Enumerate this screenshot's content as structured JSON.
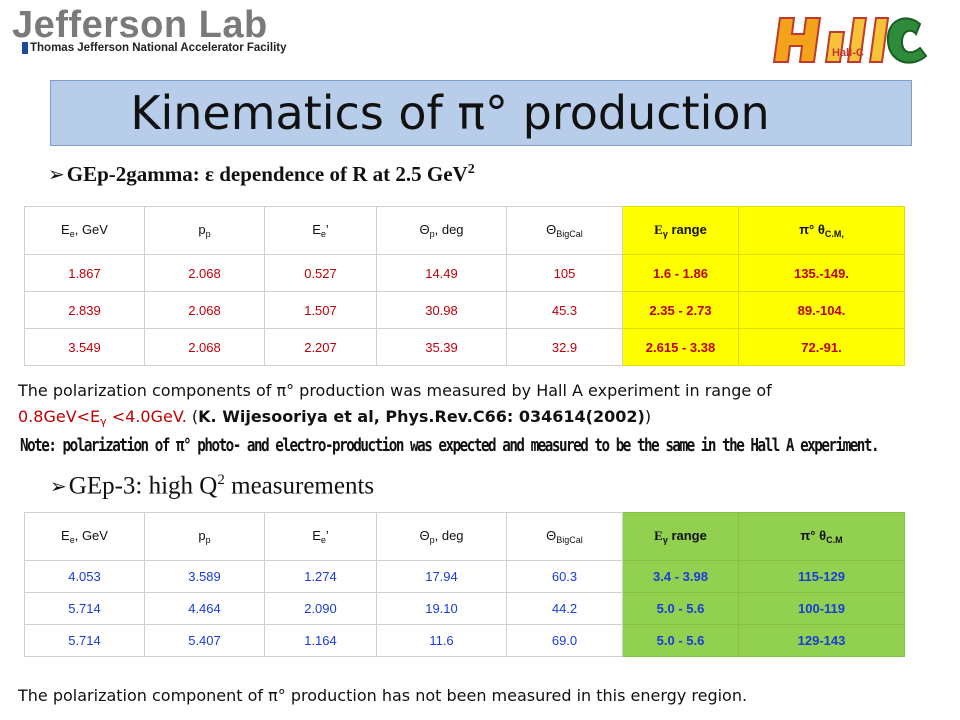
{
  "logos": {
    "jlab_title": "Jefferson Lab",
    "jlab_subtitle": "Thomas Jefferson National Accelerator Facility",
    "hallc_text": "Hall-C"
  },
  "title": "Kinematics of π° production",
  "section1": {
    "heading_prefix": "GEp-2gamma: ",
    "heading_eps": "ε",
    "heading_mid": " dependence of R at 2.5 GeV",
    "heading_sup": "2",
    "headers": {
      "ee_main": "E",
      "ee_sub": "e",
      "ee_unit": ", GeV",
      "pp_main": "p",
      "pp_sub": "p",
      "eep_main": "E",
      "eep_sub": "e",
      "eep_prime": "’",
      "thp_main": "Θ",
      "thp_sub": "p",
      "thp_unit": ", deg",
      "thb_main": "Θ",
      "thb_sub": "BigCal",
      "eg_main": "E",
      "eg_sub": "γ",
      "eg_unit": " range",
      "pi_main": "π°  θ",
      "pi_sub": "C.M,"
    },
    "rows": [
      [
        "1.867",
        "2.068",
        "0.527",
        "14.49",
        "105",
        "1.6 - 1.86",
        "135.-149."
      ],
      [
        "2.839",
        "2.068",
        "1.507",
        "30.98",
        "45.3",
        "2.35 - 2.73",
        "89.-104."
      ],
      [
        "3.549",
        "2.068",
        "2.207",
        "35.39",
        "32.9",
        "2.615 - 3.38",
        "72.-91."
      ]
    ]
  },
  "paragraph1": {
    "line1": "The polarization components of π°  production was measured by Hall A experiment in range of",
    "line2_red_a": "0.8GeV<E",
    "line2_red_sub": "γ",
    "line2_red_b": " <4.0GeV.",
    "line2_open": "  (",
    "line2_bold": "K. Wijesooriya et al, Phys.Rev.C66: 034614(2002)",
    "line2_close": ")"
  },
  "note": "Note: polarization of π° photo- and electro-production was expected and measured to be the same  in the Hall A experiment.",
  "section2": {
    "heading_a": "GEp-3: high Q",
    "heading_sup": "2",
    "heading_b": " measurements",
    "headers": {
      "ee_main": "E",
      "ee_sub": "e",
      "ee_unit": ", GeV",
      "pp_main": "p",
      "pp_sub": "p",
      "eep_main": "E",
      "eep_sub": "e",
      "eep_prime": "’",
      "thp_main": "Θ",
      "thp_sub": "p",
      "thp_unit": ", deg",
      "thb_main": "Θ",
      "thb_sub": "BigCal",
      "eg_main": "E",
      "eg_sub": "γ",
      "eg_unit": " range",
      "pi_main": "π°  θ",
      "pi_sub": "C.M"
    },
    "rows": [
      [
        "4.053",
        "3.589",
        "1.274",
        "17.94",
        "60.3",
        "3.4 - 3.98",
        "115-129"
      ],
      [
        "5.714",
        "4.464",
        "2.090",
        "19.10",
        "44.2",
        "5.0 - 5.6",
        "100-119"
      ],
      [
        "5.714",
        "5.407",
        "1.164",
        "11.6",
        "69.0",
        "5.0 - 5.6",
        "129-143"
      ]
    ]
  },
  "bottom_note": "The polarization component of π°  production has not been measured in this energy region.",
  "colors": {
    "title_bg": "#b7cdea",
    "table1_highlight": "#ffff00",
    "table1_text": "#c0000a",
    "table2_highlight": "#92d050",
    "table2_text": "#1a3cd8"
  }
}
